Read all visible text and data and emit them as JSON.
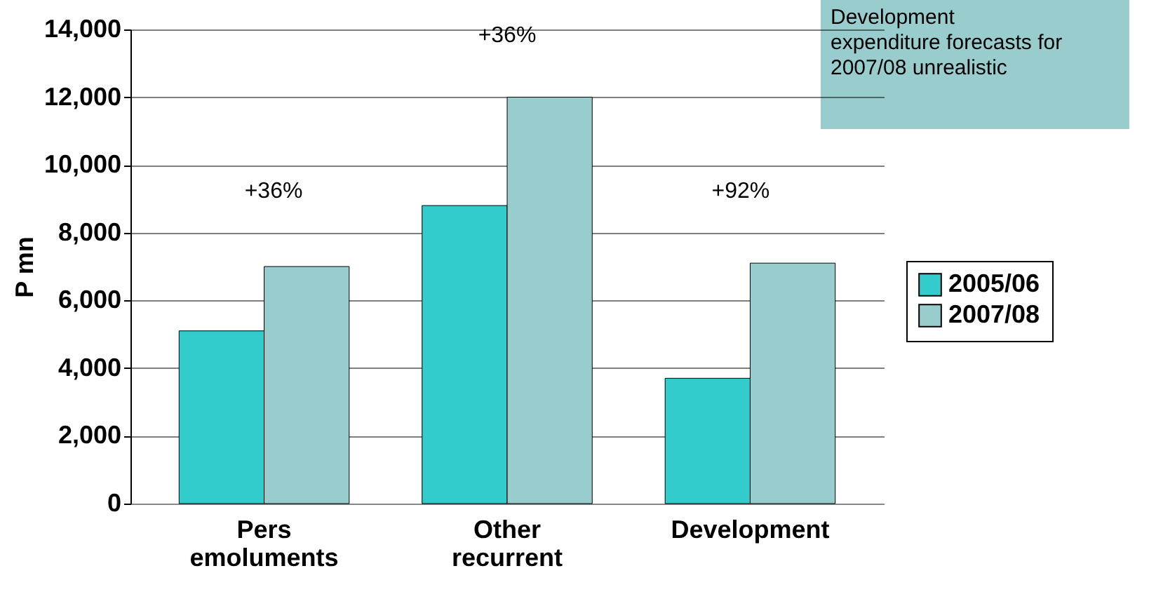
{
  "chart_data": {
    "type": "bar",
    "ylabel": "P mn",
    "categories": [
      "Pers emoluments",
      "Other recurrent",
      "Development"
    ],
    "series": [
      {
        "name": "2005/06",
        "color": "#33cccc",
        "values": [
          5100,
          8800,
          3700
        ]
      },
      {
        "name": "2007/08",
        "color": "#99cccc",
        "values": [
          7000,
          12000,
          7100
        ]
      }
    ],
    "ylim": [
      0,
      14000
    ],
    "yticks": [
      0,
      {
        "value": 2000,
        "label": "2,000"
      },
      {
        "value": 4000,
        "label": "4,000"
      },
      {
        "value": 6000,
        "label": "6,000"
      },
      {
        "value": 8000,
        "label": "8,000"
      },
      {
        "value": 10000,
        "label": "10,000"
      },
      {
        "value": 12000,
        "label": "12,000"
      },
      {
        "value": 14000,
        "label": "14,000"
      }
    ],
    "grid": "y",
    "legend": "right",
    "annotations": [
      "+36%",
      "+36%",
      "+92%",
      "Development expenditure forecasts for 2007/08 unrealistic"
    ]
  }
}
